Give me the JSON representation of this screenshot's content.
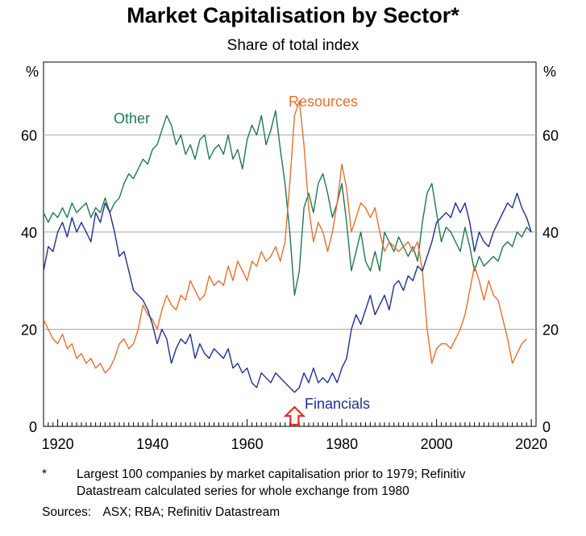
{
  "chart_data": {
    "type": "line",
    "title": "Market Capitalisation by Sector*",
    "subtitle": "Share of total index",
    "ylabel_left": "%",
    "ylabel_right": "%",
    "xlim": [
      1917,
      2021
    ],
    "ylim": [
      0,
      75
    ],
    "x_ticks": [
      1920,
      1940,
      1960,
      1980,
      2000,
      2020
    ],
    "y_ticks": [
      0,
      20,
      40,
      60
    ],
    "grid": "horizontal",
    "series": [
      {
        "name": "Other",
        "color": "#1e7a4e",
        "points": [
          [
            1917,
            44
          ],
          [
            1918,
            42
          ],
          [
            1919,
            44
          ],
          [
            1920,
            43
          ],
          [
            1921,
            45
          ],
          [
            1922,
            43
          ],
          [
            1923,
            46
          ],
          [
            1924,
            44
          ],
          [
            1925,
            45
          ],
          [
            1926,
            46
          ],
          [
            1927,
            43
          ],
          [
            1928,
            45
          ],
          [
            1929,
            44
          ],
          [
            1930,
            47
          ],
          [
            1931,
            44
          ],
          [
            1932,
            46
          ],
          [
            1933,
            47
          ],
          [
            1934,
            50
          ],
          [
            1935,
            52
          ],
          [
            1936,
            51
          ],
          [
            1937,
            53
          ],
          [
            1938,
            55
          ],
          [
            1939,
            54
          ],
          [
            1940,
            57
          ],
          [
            1941,
            58
          ],
          [
            1942,
            61
          ],
          [
            1943,
            64
          ],
          [
            1944,
            62
          ],
          [
            1945,
            58
          ],
          [
            1946,
            60
          ],
          [
            1947,
            56
          ],
          [
            1948,
            58
          ],
          [
            1949,
            55
          ],
          [
            1950,
            59
          ],
          [
            1951,
            60
          ],
          [
            1952,
            55
          ],
          [
            1953,
            57
          ],
          [
            1954,
            58
          ],
          [
            1955,
            56
          ],
          [
            1956,
            60
          ],
          [
            1957,
            55
          ],
          [
            1958,
            57
          ],
          [
            1959,
            53
          ],
          [
            1960,
            59
          ],
          [
            1961,
            62
          ],
          [
            1962,
            60
          ],
          [
            1963,
            64
          ],
          [
            1964,
            58
          ],
          [
            1965,
            61
          ],
          [
            1966,
            65
          ],
          [
            1967,
            57
          ],
          [
            1968,
            50
          ],
          [
            1969,
            40
          ],
          [
            1970,
            27
          ],
          [
            1971,
            32
          ],
          [
            1972,
            45
          ],
          [
            1973,
            48
          ],
          [
            1974,
            44
          ],
          [
            1975,
            50
          ],
          [
            1976,
            52
          ],
          [
            1977,
            48
          ],
          [
            1978,
            43
          ],
          [
            1979,
            46
          ],
          [
            1980,
            50
          ],
          [
            1981,
            42
          ],
          [
            1982,
            32
          ],
          [
            1983,
            36
          ],
          [
            1984,
            40
          ],
          [
            1985,
            34
          ],
          [
            1986,
            32
          ],
          [
            1987,
            36
          ],
          [
            1988,
            32
          ],
          [
            1989,
            40
          ],
          [
            1990,
            38
          ],
          [
            1991,
            36
          ],
          [
            1992,
            39
          ],
          [
            1993,
            37
          ],
          [
            1994,
            35
          ],
          [
            1995,
            37
          ],
          [
            1996,
            34
          ],
          [
            1997,
            42
          ],
          [
            1998,
            48
          ],
          [
            1999,
            50
          ],
          [
            2000,
            44
          ],
          [
            2001,
            38
          ],
          [
            2002,
            41
          ],
          [
            2003,
            40
          ],
          [
            2004,
            38
          ],
          [
            2005,
            36
          ],
          [
            2006,
            41
          ],
          [
            2007,
            37
          ],
          [
            2008,
            32
          ],
          [
            2009,
            35
          ],
          [
            2010,
            33
          ],
          [
            2011,
            34
          ],
          [
            2012,
            35
          ],
          [
            2013,
            34
          ],
          [
            2014,
            37
          ],
          [
            2015,
            38
          ],
          [
            2016,
            37
          ],
          [
            2017,
            40
          ],
          [
            2018,
            39
          ],
          [
            2019,
            41
          ],
          [
            2020,
            40
          ]
        ]
      },
      {
        "name": "Resources",
        "color": "#e5702e",
        "points": [
          [
            1917,
            22
          ],
          [
            1918,
            20
          ],
          [
            1919,
            18
          ],
          [
            1920,
            17
          ],
          [
            1921,
            19
          ],
          [
            1922,
            16
          ],
          [
            1923,
            17
          ],
          [
            1924,
            14
          ],
          [
            1925,
            15
          ],
          [
            1926,
            13
          ],
          [
            1927,
            14
          ],
          [
            1928,
            12
          ],
          [
            1929,
            13
          ],
          [
            1930,
            11
          ],
          [
            1931,
            12
          ],
          [
            1932,
            14
          ],
          [
            1933,
            17
          ],
          [
            1934,
            18
          ],
          [
            1935,
            16
          ],
          [
            1936,
            17
          ],
          [
            1937,
            20
          ],
          [
            1938,
            25
          ],
          [
            1939,
            23
          ],
          [
            1940,
            22
          ],
          [
            1941,
            20
          ],
          [
            1942,
            24
          ],
          [
            1943,
            27
          ],
          [
            1944,
            25
          ],
          [
            1945,
            24
          ],
          [
            1946,
            27
          ],
          [
            1947,
            26
          ],
          [
            1948,
            30
          ],
          [
            1949,
            28
          ],
          [
            1950,
            26
          ],
          [
            1951,
            27
          ],
          [
            1952,
            31
          ],
          [
            1953,
            29
          ],
          [
            1954,
            30
          ],
          [
            1955,
            29
          ],
          [
            1956,
            33
          ],
          [
            1957,
            30
          ],
          [
            1958,
            34
          ],
          [
            1959,
            32
          ],
          [
            1960,
            30
          ],
          [
            1961,
            34
          ],
          [
            1962,
            33
          ],
          [
            1963,
            36
          ],
          [
            1964,
            34
          ],
          [
            1965,
            35
          ],
          [
            1966,
            37
          ],
          [
            1967,
            34
          ],
          [
            1968,
            38
          ],
          [
            1969,
            50
          ],
          [
            1970,
            64
          ],
          [
            1971,
            67
          ],
          [
            1972,
            58
          ],
          [
            1973,
            45
          ],
          [
            1974,
            38
          ],
          [
            1975,
            42
          ],
          [
            1976,
            40
          ],
          [
            1977,
            36
          ],
          [
            1978,
            40
          ],
          [
            1979,
            46
          ],
          [
            1980,
            54
          ],
          [
            1981,
            49
          ],
          [
            1982,
            40
          ],
          [
            1983,
            43
          ],
          [
            1984,
            46
          ],
          [
            1985,
            45
          ],
          [
            1986,
            43
          ],
          [
            1987,
            45
          ],
          [
            1988,
            40
          ],
          [
            1989,
            36
          ],
          [
            1990,
            38
          ],
          [
            1991,
            37
          ],
          [
            1992,
            36
          ],
          [
            1993,
            37
          ],
          [
            1994,
            38
          ],
          [
            1995,
            36
          ],
          [
            1996,
            38
          ],
          [
            1997,
            32
          ],
          [
            1998,
            20
          ],
          [
            1999,
            13
          ],
          [
            2000,
            16
          ],
          [
            2001,
            17
          ],
          [
            2002,
            17
          ],
          [
            2003,
            16
          ],
          [
            2004,
            18
          ],
          [
            2005,
            20
          ],
          [
            2006,
            23
          ],
          [
            2007,
            28
          ],
          [
            2008,
            33
          ],
          [
            2009,
            30
          ],
          [
            2010,
            26
          ],
          [
            2011,
            30
          ],
          [
            2012,
            27
          ],
          [
            2013,
            26
          ],
          [
            2014,
            22
          ],
          [
            2015,
            18
          ],
          [
            2016,
            13
          ],
          [
            2017,
            15
          ],
          [
            2018,
            17
          ],
          [
            2019,
            18
          ]
        ]
      },
      {
        "name": "Financials",
        "color": "#1f2f8e",
        "points": [
          [
            1917,
            32
          ],
          [
            1918,
            37
          ],
          [
            1919,
            36
          ],
          [
            1920,
            40
          ],
          [
            1921,
            42
          ],
          [
            1922,
            39
          ],
          [
            1923,
            43
          ],
          [
            1924,
            40
          ],
          [
            1925,
            42
          ],
          [
            1926,
            40
          ],
          [
            1927,
            38
          ],
          [
            1928,
            44
          ],
          [
            1929,
            42
          ],
          [
            1930,
            46
          ],
          [
            1931,
            44
          ],
          [
            1932,
            40
          ],
          [
            1933,
            35
          ],
          [
            1934,
            36
          ],
          [
            1935,
            32
          ],
          [
            1936,
            28
          ],
          [
            1937,
            27
          ],
          [
            1938,
            26
          ],
          [
            1939,
            24
          ],
          [
            1940,
            21
          ],
          [
            1941,
            17
          ],
          [
            1942,
            20
          ],
          [
            1943,
            18
          ],
          [
            1944,
            13
          ],
          [
            1945,
            16
          ],
          [
            1946,
            18
          ],
          [
            1947,
            17
          ],
          [
            1948,
            19
          ],
          [
            1949,
            14
          ],
          [
            1950,
            17
          ],
          [
            1951,
            15
          ],
          [
            1952,
            14
          ],
          [
            1953,
            16
          ],
          [
            1954,
            15
          ],
          [
            1955,
            14
          ],
          [
            1956,
            16
          ],
          [
            1957,
            12
          ],
          [
            1958,
            13
          ],
          [
            1959,
            11
          ],
          [
            1960,
            12
          ],
          [
            1961,
            9
          ],
          [
            1962,
            8
          ],
          [
            1963,
            11
          ],
          [
            1964,
            10
          ],
          [
            1965,
            9
          ],
          [
            1966,
            11
          ],
          [
            1967,
            10
          ],
          [
            1968,
            9
          ],
          [
            1969,
            8
          ],
          [
            1970,
            7
          ],
          [
            1971,
            8
          ],
          [
            1972,
            11
          ],
          [
            1973,
            9
          ],
          [
            1974,
            12
          ],
          [
            1975,
            9
          ],
          [
            1976,
            10
          ],
          [
            1977,
            9
          ],
          [
            1978,
            11
          ],
          [
            1979,
            9
          ],
          [
            1980,
            12
          ],
          [
            1981,
            14
          ],
          [
            1982,
            20
          ],
          [
            1983,
            23
          ],
          [
            1984,
            21
          ],
          [
            1985,
            24
          ],
          [
            1986,
            27
          ],
          [
            1987,
            23
          ],
          [
            1988,
            25
          ],
          [
            1989,
            27
          ],
          [
            1990,
            24
          ],
          [
            1991,
            29
          ],
          [
            1992,
            30
          ],
          [
            1993,
            28
          ],
          [
            1994,
            31
          ],
          [
            1995,
            30
          ],
          [
            1996,
            33
          ],
          [
            1997,
            32
          ],
          [
            1998,
            35
          ],
          [
            1999,
            38
          ],
          [
            2000,
            42
          ],
          [
            2001,
            43
          ],
          [
            2002,
            44
          ],
          [
            2003,
            43
          ],
          [
            2004,
            46
          ],
          [
            2005,
            44
          ],
          [
            2006,
            46
          ],
          [
            2007,
            42
          ],
          [
            2008,
            36
          ],
          [
            2009,
            40
          ],
          [
            2010,
            38
          ],
          [
            2011,
            37
          ],
          [
            2012,
            40
          ],
          [
            2013,
            42
          ],
          [
            2014,
            44
          ],
          [
            2015,
            46
          ],
          [
            2016,
            45
          ],
          [
            2017,
            48
          ],
          [
            2018,
            45
          ],
          [
            2019,
            43
          ],
          [
            2020,
            40
          ]
        ]
      }
    ]
  },
  "annotation": {
    "marker": "up-arrow-icon",
    "marker_color": "#e03020",
    "year": 1970
  },
  "footnote": {
    "star": "*",
    "text": "Largest 100 companies by market capitalisation prior to 1979; Refinitiv Datastream calculated series for whole exchange from 1980"
  },
  "sources": {
    "label": "Sources:",
    "text": "ASX; RBA; Refinitiv Datastream"
  }
}
